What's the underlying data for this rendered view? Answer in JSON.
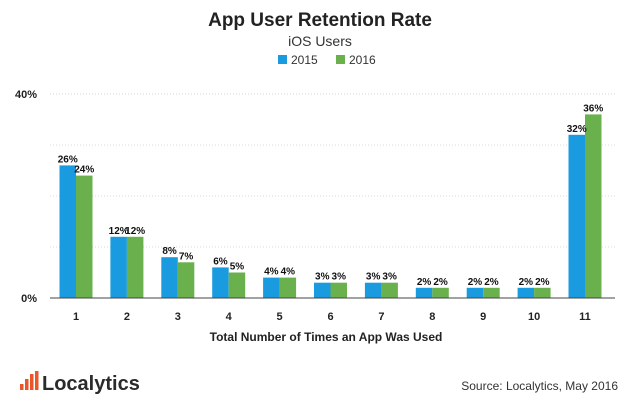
{
  "chart_data": {
    "type": "bar",
    "title": "App User Retention Rate",
    "subtitle": "iOS Users",
    "xlabel": "Total Number of Times an App Was Used",
    "ylabel": "",
    "ylim": [
      0,
      40
    ],
    "yticks": [
      0,
      40
    ],
    "ytick_labels": [
      "0%",
      "40%"
    ],
    "grid": true,
    "legend_position": "top-center",
    "categories": [
      "1",
      "2",
      "3",
      "4",
      "5",
      "6",
      "7",
      "8",
      "9",
      "10",
      "11"
    ],
    "series": [
      {
        "name": "2015",
        "color": "#1a9be0",
        "values": [
          26,
          12,
          8,
          6,
          4,
          3,
          3,
          2,
          2,
          2,
          32
        ],
        "labels": [
          "26%",
          "12%",
          "8%",
          "6%",
          "4%",
          "3%",
          "3%",
          "2%",
          "2%",
          "2%",
          "32%"
        ]
      },
      {
        "name": "2016",
        "color": "#6ab04c",
        "values": [
          24,
          12,
          7,
          5,
          4,
          3,
          3,
          2,
          2,
          2,
          36
        ],
        "labels": [
          "24%",
          "12%",
          "7%",
          "5%",
          "4%",
          "3%",
          "3%",
          "2%",
          "2%",
          "2%",
          "36%"
        ]
      }
    ]
  },
  "brand": {
    "name": "Localytics",
    "logo_color": "#e8562a"
  },
  "source": "Source: Localytics, May 2016"
}
